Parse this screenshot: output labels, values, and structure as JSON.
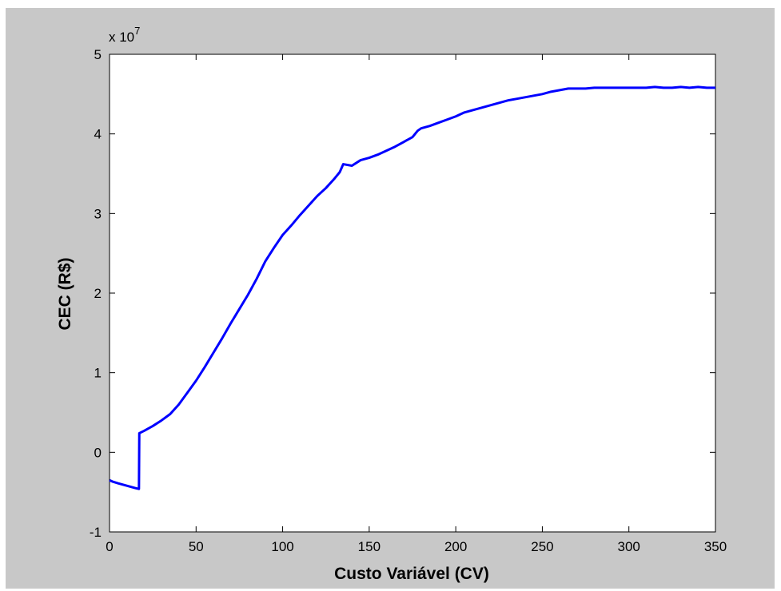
{
  "chart_data": {
    "type": "line",
    "xlabel": "Custo Variável (CV)",
    "ylabel": "CEC (R$)",
    "exponent_label": "x 10",
    "exponent_power": "7",
    "xlim": [
      0,
      350
    ],
    "ylim": [
      -1,
      5
    ],
    "y_scale_multiplier": 10000000,
    "x_ticks": [
      0,
      50,
      100,
      150,
      200,
      250,
      300,
      350
    ],
    "x_tick_labels": [
      "0",
      "50",
      "100",
      "150",
      "200",
      "250",
      "300",
      "350"
    ],
    "y_ticks": [
      -1,
      0,
      1,
      2,
      3,
      4,
      5
    ],
    "y_tick_labels": [
      "-1",
      "0",
      "1",
      "2",
      "3",
      "4",
      "5"
    ],
    "grid": false,
    "legend": "none",
    "colors": {
      "line": "#0000ff",
      "frame_background": "#c8c8c8",
      "plot_background": "#ffffff"
    },
    "series": [
      {
        "x": [
          0,
          2,
          5,
          10,
          15,
          17,
          17.2,
          20,
          25,
          30,
          35,
          40,
          45,
          50,
          55,
          60,
          65,
          70,
          75,
          80,
          85,
          90,
          95,
          100,
          105,
          110,
          115,
          120,
          125,
          130,
          133,
          135,
          140,
          145,
          150,
          155,
          160,
          165,
          170,
          175,
          178,
          180,
          185,
          190,
          195,
          200,
          205,
          210,
          215,
          220,
          225,
          230,
          235,
          240,
          245,
          250,
          255,
          260,
          265,
          270,
          275,
          280,
          290,
          300,
          305,
          310,
          315,
          320,
          325,
          330,
          335,
          340,
          345,
          350
        ],
        "values": [
          -0.35,
          -0.37,
          -0.39,
          -0.42,
          -0.45,
          -0.46,
          0.24,
          0.27,
          0.33,
          0.4,
          0.48,
          0.6,
          0.75,
          0.9,
          1.07,
          1.25,
          1.43,
          1.62,
          1.8,
          1.98,
          2.18,
          2.4,
          2.57,
          2.73,
          2.85,
          2.98,
          3.1,
          3.22,
          3.32,
          3.44,
          3.52,
          3.62,
          3.6,
          3.67,
          3.7,
          3.74,
          3.79,
          3.84,
          3.9,
          3.96,
          4.04,
          4.07,
          4.1,
          4.14,
          4.18,
          4.22,
          4.27,
          4.3,
          4.33,
          4.36,
          4.39,
          4.42,
          4.44,
          4.46,
          4.48,
          4.5,
          4.53,
          4.55,
          4.57,
          4.57,
          4.57,
          4.58,
          4.58,
          4.58,
          4.58,
          4.58,
          4.59,
          4.58,
          4.58,
          4.59,
          4.58,
          4.59,
          4.58,
          4.58
        ]
      }
    ]
  }
}
